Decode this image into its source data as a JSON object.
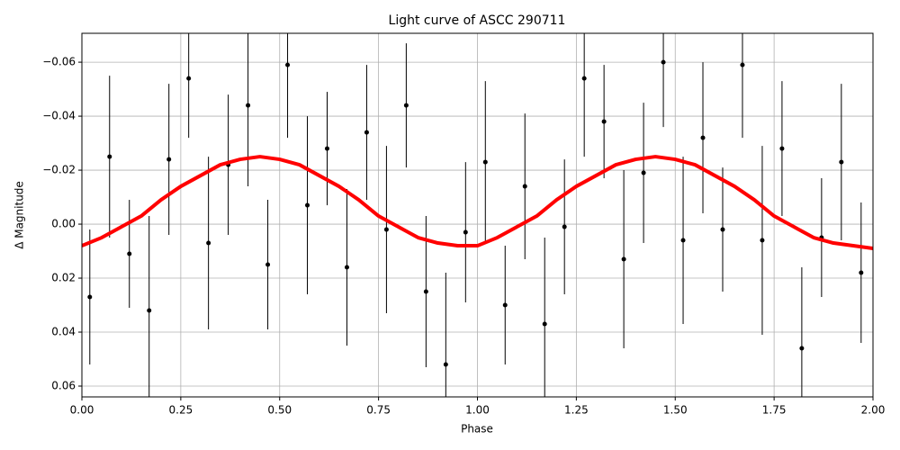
{
  "chart_data": {
    "type": "scatter",
    "title": "Light curve of ASCC 290711",
    "xlabel": "Phase",
    "ylabel": "Δ Magnitude",
    "xlim": [
      0,
      2
    ],
    "ylim": [
      0.064,
      -0.0707
    ],
    "xticks": [
      {
        "value": 0,
        "label": "0.00"
      },
      {
        "value": 0.25,
        "label": "0.25"
      },
      {
        "value": 0.5,
        "label": "0.50"
      },
      {
        "value": 0.75,
        "label": "0.75"
      },
      {
        "value": 1,
        "label": "1.00"
      },
      {
        "value": 1.25,
        "label": "1.25"
      },
      {
        "value": 1.5,
        "label": "1.50"
      },
      {
        "value": 1.75,
        "label": "1.75"
      },
      {
        "value": 2,
        "label": "2.00"
      }
    ],
    "yticks": [
      {
        "value": -0.06,
        "label": "−0.06"
      },
      {
        "value": -0.04,
        "label": "−0.04"
      },
      {
        "value": -0.02,
        "label": "−0.02"
      },
      {
        "value": 0,
        "label": "0.00"
      },
      {
        "value": 0.02,
        "label": "0.02"
      },
      {
        "value": 0.04,
        "label": "0.04"
      },
      {
        "value": 0.06,
        "label": "0.06"
      }
    ],
    "grid": true,
    "series": [
      {
        "type": "errorbar",
        "color": "#000000",
        "x": [
          0.02,
          0.07,
          0.12,
          0.17,
          0.22,
          0.27,
          0.32,
          0.37,
          0.42,
          0.47,
          0.52,
          0.57,
          0.62,
          0.67,
          0.72,
          0.77,
          0.82,
          0.87,
          0.92,
          0.97,
          1.02,
          1.07,
          1.12,
          1.17,
          1.22,
          1.27,
          1.32,
          1.37,
          1.42,
          1.47,
          1.52,
          1.57,
          1.62,
          1.67,
          1.72,
          1.77,
          1.82,
          1.87,
          1.92,
          1.97
        ],
        "values": [
          0.027,
          -0.025,
          0.011,
          0.032,
          -0.024,
          -0.054,
          0.007,
          -0.022,
          -0.044,
          0.015,
          -0.059,
          -0.007,
          -0.028,
          0.016,
          -0.034,
          0.002,
          -0.044,
          0.025,
          0.052,
          0.003,
          -0.023,
          0.03,
          -0.014,
          0.037,
          0.001,
          -0.054,
          -0.038,
          0.013,
          -0.019,
          -0.06,
          0.006,
          -0.032,
          0.002,
          -0.059,
          0.006,
          -0.028,
          0.046,
          0.005,
          -0.023,
          0.018
        ],
        "errors": [
          0.025,
          0.03,
          0.02,
          0.035,
          0.028,
          0.022,
          0.032,
          0.026,
          0.03,
          0.024,
          0.027,
          0.033,
          0.021,
          0.029,
          0.025,
          0.031,
          0.023,
          0.028,
          0.034,
          0.026,
          0.03,
          0.022,
          0.027,
          0.032,
          0.025,
          0.029,
          0.021,
          0.033,
          0.026,
          0.024,
          0.031,
          0.028,
          0.023,
          0.027,
          0.035,
          0.025,
          0.03,
          0.022,
          0.029,
          0.026
        ]
      },
      {
        "type": "line",
        "color": "#ff0000",
        "x": [
          0,
          0.05,
          0.1,
          0.15,
          0.2,
          0.25,
          0.3,
          0.35,
          0.4,
          0.45,
          0.5,
          0.55,
          0.6,
          0.65,
          0.7,
          0.75,
          0.8,
          0.85,
          0.9,
          0.95,
          1,
          1.05,
          1.1,
          1.15,
          1.2,
          1.25,
          1.3,
          1.35,
          1.4,
          1.45,
          1.5,
          1.55,
          1.6,
          1.65,
          1.7,
          1.75,
          1.8,
          1.85,
          1.9,
          1.95,
          2
        ],
        "values": [
          0.008,
          0.005,
          0.001,
          -0.003,
          -0.009,
          -0.014,
          -0.018,
          -0.022,
          -0.024,
          -0.025,
          -0.024,
          -0.022,
          -0.018,
          -0.014,
          -0.009,
          -0.003,
          0.001,
          0.005,
          0.007,
          0.008,
          0.008,
          0.005,
          0.001,
          -0.003,
          -0.009,
          -0.014,
          -0.018,
          -0.022,
          -0.024,
          -0.025,
          -0.024,
          -0.022,
          -0.018,
          -0.014,
          -0.009,
          -0.003,
          0.001,
          0.005,
          0.007,
          0.008,
          0.009
        ]
      }
    ]
  }
}
